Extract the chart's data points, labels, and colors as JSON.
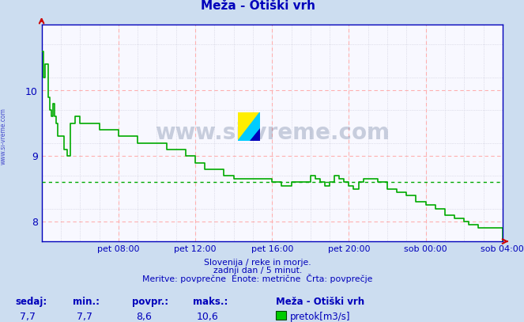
{
  "title": "Meža - Otiški vrh",
  "bg_color": "#ccddf0",
  "plot_bg_color": "#f8f8ff",
  "line_color": "#00aa00",
  "avg_line_color": "#00aa00",
  "grid_color_major": "#ffb0b0",
  "grid_color_minor": "#c8c8d8",
  "ylim": [
    7.7,
    11.0
  ],
  "yticks": [
    8.0,
    9.0,
    10.0
  ],
  "avg_value": 8.6,
  "axis_color": "#0000bb",
  "title_color": "#0000bb",
  "subtitle_lines": [
    "Slovenija / reke in morje.",
    "zadnji dan / 5 minut.",
    "Meritve: povprečne  Enote: metrične  Črta: povprečje"
  ],
  "bottom_labels": [
    "sedaj:",
    "min.:",
    "povpr.:",
    "maks.:"
  ],
  "bottom_values": [
    "7,7",
    "7,7",
    "8,6",
    "10,6"
  ],
  "legend_title": "Meža - Otiški vrh",
  "legend_label": "pretok[m3/s]",
  "legend_color": "#00cc00",
  "watermark_text": "www.si-vreme.com",
  "x_tick_labels": [
    "pet 08:00",
    "pet 12:00",
    "pet 16:00",
    "pet 20:00",
    "sob 00:00",
    "sob 04:00"
  ],
  "x_tick_norm": [
    0.1667,
    0.3333,
    0.5,
    0.6667,
    0.8333,
    1.0
  ],
  "total_hours": 24,
  "data_x_hours": [
    0,
    0.08,
    0.17,
    0.25,
    0.33,
    0.42,
    0.5,
    0.58,
    0.67,
    0.75,
    0.83,
    1.0,
    1.17,
    1.33,
    1.5,
    1.75,
    2.0,
    2.5,
    3.0,
    3.5,
    4.0,
    4.5,
    5.0,
    5.5,
    6.0,
    6.5,
    7.0,
    7.5,
    8.0,
    8.5,
    9.0,
    9.5,
    10.0,
    10.5,
    11.0,
    11.5,
    12.0,
    12.5,
    13.0,
    13.5,
    14.0,
    14.25,
    14.5,
    14.75,
    15.0,
    15.25,
    15.5,
    15.75,
    16.0,
    16.25,
    16.5,
    16.75,
    17.0,
    17.5,
    18.0,
    18.5,
    19.0,
    19.5,
    20.0,
    20.5,
    21.0,
    21.5,
    22.0,
    22.25,
    22.5,
    22.75,
    23.0,
    23.5,
    24.0
  ],
  "data_y": [
    10.6,
    10.2,
    10.4,
    10.4,
    9.9,
    9.7,
    9.6,
    9.8,
    9.6,
    9.5,
    9.3,
    9.3,
    9.1,
    9.0,
    9.5,
    9.6,
    9.5,
    9.5,
    9.4,
    9.4,
    9.3,
    9.3,
    9.2,
    9.2,
    9.2,
    9.1,
    9.1,
    9.0,
    8.9,
    8.8,
    8.8,
    8.7,
    8.65,
    8.65,
    8.65,
    8.65,
    8.6,
    8.55,
    8.6,
    8.6,
    8.7,
    8.65,
    8.6,
    8.55,
    8.6,
    8.7,
    8.65,
    8.6,
    8.55,
    8.5,
    8.6,
    8.65,
    8.65,
    8.6,
    8.5,
    8.45,
    8.4,
    8.3,
    8.25,
    8.2,
    8.1,
    8.05,
    8.0,
    7.95,
    7.95,
    7.9,
    7.9,
    7.9,
    7.7
  ]
}
